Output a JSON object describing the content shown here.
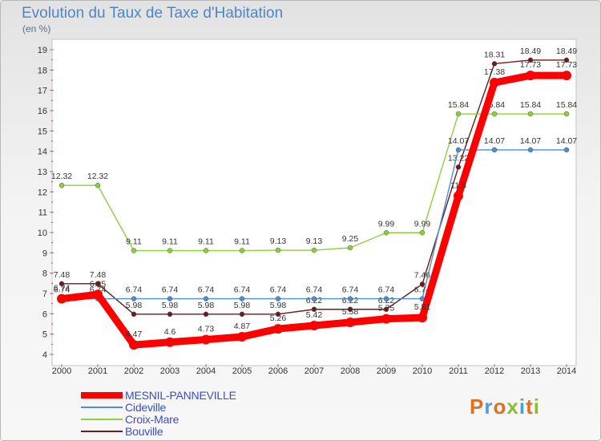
{
  "header": {
    "title": "Evolution du Taux de Taxe d'Habitation",
    "subtitle": "(en %)"
  },
  "logo": {
    "text": "Proxiti",
    "colors": [
      "#e07020",
      "#4aa0d8",
      "#e07020",
      "#8ac030",
      "#4aa0d8",
      "#e07020",
      "#8ac030"
    ]
  },
  "chart_data": {
    "type": "line",
    "title": "Evolution du Taux de Taxe d'Habitation",
    "ylabel": "(en %)",
    "xlabel": "",
    "x": [
      "2000",
      "2001",
      "2002",
      "2003",
      "2004",
      "2005",
      "2006",
      "2007",
      "2008",
      "2009",
      "2010",
      "2011",
      "2012",
      "2013",
      "2014"
    ],
    "ylim": [
      4,
      19
    ],
    "yticks": [
      4,
      5,
      6,
      7,
      8,
      9,
      10,
      11,
      12,
      13,
      14,
      15,
      16,
      17,
      18,
      19
    ],
    "grid": false,
    "legend_position": "bottom-left",
    "series": [
      {
        "name": "Bouville",
        "color": "#6e1a1a",
        "values": [
          7.48,
          7.48,
          5.98,
          5.98,
          5.98,
          5.98,
          5.98,
          6.22,
          6.22,
          6.22,
          7.46,
          13.22,
          18.31,
          18.49,
          18.49
        ],
        "labels": [
          "7.48",
          "7.48",
          "5.98",
          "5.98",
          "5.98",
          "5.98",
          "5.98",
          "6.22",
          "6.22",
          "6.22",
          "7.46",
          "13.22",
          "18.31",
          "18.49",
          "18.49"
        ]
      },
      {
        "name": "Croix-Mare",
        "color": "#8ccf3c",
        "values": [
          12.32,
          12.32,
          9.11,
          9.11,
          9.11,
          9.11,
          9.13,
          9.13,
          9.25,
          9.99,
          9.99,
          15.84,
          15.84,
          15.84,
          15.84
        ],
        "labels": [
          "12.32",
          "12.32",
          "9.11",
          "9.11",
          "9.11",
          "9.11",
          "9.13",
          "9.13",
          "9.25",
          "9.99",
          "9.99",
          "15.84",
          "15.84",
          "15.84",
          "15.84"
        ]
      },
      {
        "name": "Cideville",
        "color": "#4a8fd0",
        "values": [
          6.74,
          6.74,
          6.74,
          6.74,
          6.74,
          6.74,
          6.74,
          6.74,
          6.74,
          6.74,
          6.74,
          14.07,
          14.07,
          14.07,
          14.07
        ],
        "labels": [
          "6.74",
          "6.74",
          "6.74",
          "6.74",
          "6.74",
          "6.74",
          "6.74",
          "6.74",
          "6.74",
          "6.74",
          "6.74",
          "14.07",
          "14.07",
          "14.07",
          "14.07"
        ]
      },
      {
        "name": "MESNIL-PANNEVILLE",
        "color": "#ff0000",
        "values": [
          6.74,
          6.95,
          4.47,
          4.6,
          4.73,
          4.87,
          5.26,
          5.42,
          5.58,
          5.75,
          5.81,
          11.8,
          17.38,
          17.73,
          17.73
        ],
        "labels": [
          "6.74",
          "6.95",
          "4.47",
          "4.6",
          "4.73",
          "4.87",
          "5.26",
          "5.42",
          "5.58",
          "5.75",
          "5.81",
          "11.8",
          "17.38",
          "17.73",
          "17.73"
        ]
      }
    ]
  },
  "legend": {
    "items": [
      {
        "name": "MESNIL-PANNEVILLE",
        "color": "#ff0000",
        "thick": true
      },
      {
        "name": "Cideville",
        "color": "#4a8fd0",
        "thick": false
      },
      {
        "name": "Croix-Mare",
        "color": "#8ccf3c",
        "thick": false
      },
      {
        "name": "Bouville",
        "color": "#6e1a1a",
        "thick": false
      }
    ]
  }
}
